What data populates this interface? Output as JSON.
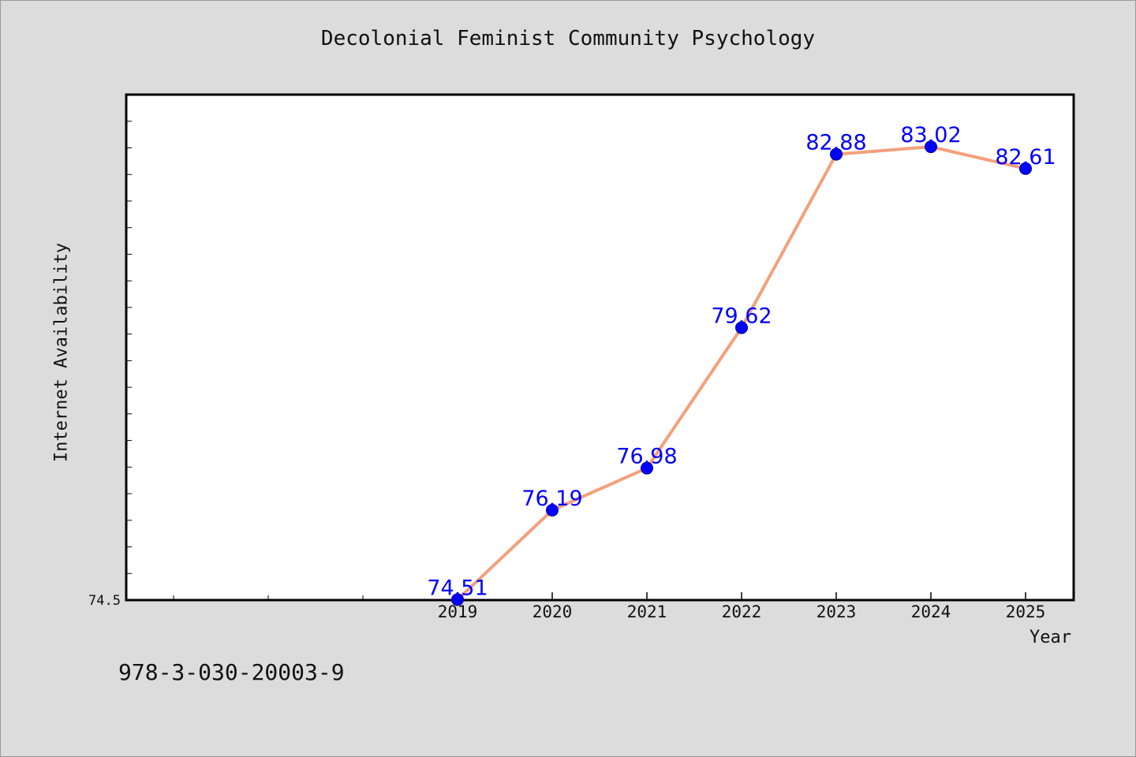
{
  "chart_data": {
    "type": "line",
    "title": "Decolonial Feminist Community Psychology",
    "xlabel": "Year",
    "ylabel": "Internet Availability",
    "x": [
      "2019",
      "2020",
      "2021",
      "2022",
      "2023",
      "2024",
      "2025"
    ],
    "series": [
      {
        "values": [
          74.51,
          76.19,
          76.98,
          79.62,
          82.88,
          83.02,
          82.61
        ],
        "labels": [
          "74.51",
          "76.19",
          "76.98",
          "79.62",
          "82.88",
          "83.02",
          "82.61"
        ],
        "line_color": "#f4a07c",
        "marker_color": "#0000ff"
      }
    ],
    "y_tick_labels": [
      "74.5"
    ],
    "ylim": [
      74.5,
      84.0
    ],
    "grid": false,
    "legend": "none"
  },
  "footnote": "978-3-030-20003-9",
  "colors": {
    "background": "#dcdcdc",
    "plot_background": "#ffffff",
    "label_color": "#0000ff"
  }
}
